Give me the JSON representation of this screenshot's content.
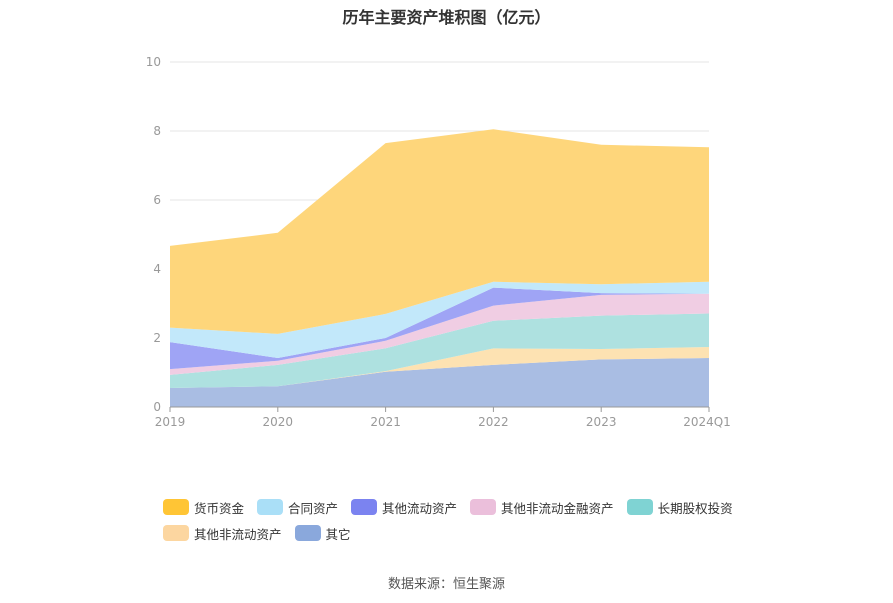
{
  "chart_data": {
    "type": "area",
    "stacked": true,
    "title": "历年主要资产堆积图（亿元）",
    "categories": [
      "2019",
      "2020",
      "2021",
      "2022",
      "2023",
      "2024Q1"
    ],
    "ylim": [
      0,
      10
    ],
    "yticks": [
      "0",
      "2",
      "4",
      "6",
      "8",
      "10"
    ],
    "grid": true,
    "legend_position": "bottom",
    "series": [
      {
        "name": "其它",
        "color": "#a9bde3",
        "values": [
          0.55,
          0.6,
          1.02,
          1.22,
          1.38,
          1.42
        ]
      },
      {
        "name": "其他非流动资产",
        "color": "#fde2b2",
        "values": [
          0.0,
          0.0,
          0.02,
          0.48,
          0.3,
          0.32
        ]
      },
      {
        "name": "长期股权投资",
        "color": "#aee1e0",
        "values": [
          0.38,
          0.62,
          0.66,
          0.8,
          0.97,
          0.97
        ]
      },
      {
        "name": "其他非流动金融资产",
        "color": "#f0cde3",
        "values": [
          0.17,
          0.12,
          0.22,
          0.44,
          0.6,
          0.57
        ]
      },
      {
        "name": "其他流动资产",
        "color": "#9fa4f5",
        "values": [
          0.78,
          0.08,
          0.08,
          0.52,
          0.05,
          0.0
        ]
      },
      {
        "name": "合同资产",
        "color": "#c2e8fa",
        "values": [
          0.42,
          0.7,
          0.7,
          0.17,
          0.26,
          0.35
        ]
      },
      {
        "name": "货币资金",
        "color": "#fed67b",
        "values": [
          2.37,
          2.93,
          4.95,
          4.42,
          4.04,
          3.9
        ]
      }
    ]
  },
  "legend": {
    "items": [
      {
        "label": "货币资金",
        "color": "#ffc535"
      },
      {
        "label": "合同资产",
        "color": "#aadff7"
      },
      {
        "label": "其他流动资产",
        "color": "#7b83f0"
      },
      {
        "label": "其他非流动金融资产",
        "color": "#ebbfdb"
      },
      {
        "label": "长期股权投资",
        "color": "#7fd3d3"
      },
      {
        "label": "其他非流动资产",
        "color": "#fcd6a0"
      },
      {
        "label": "其它",
        "color": "#8aa8dc"
      }
    ]
  },
  "source": "数据来源：恒生聚源"
}
